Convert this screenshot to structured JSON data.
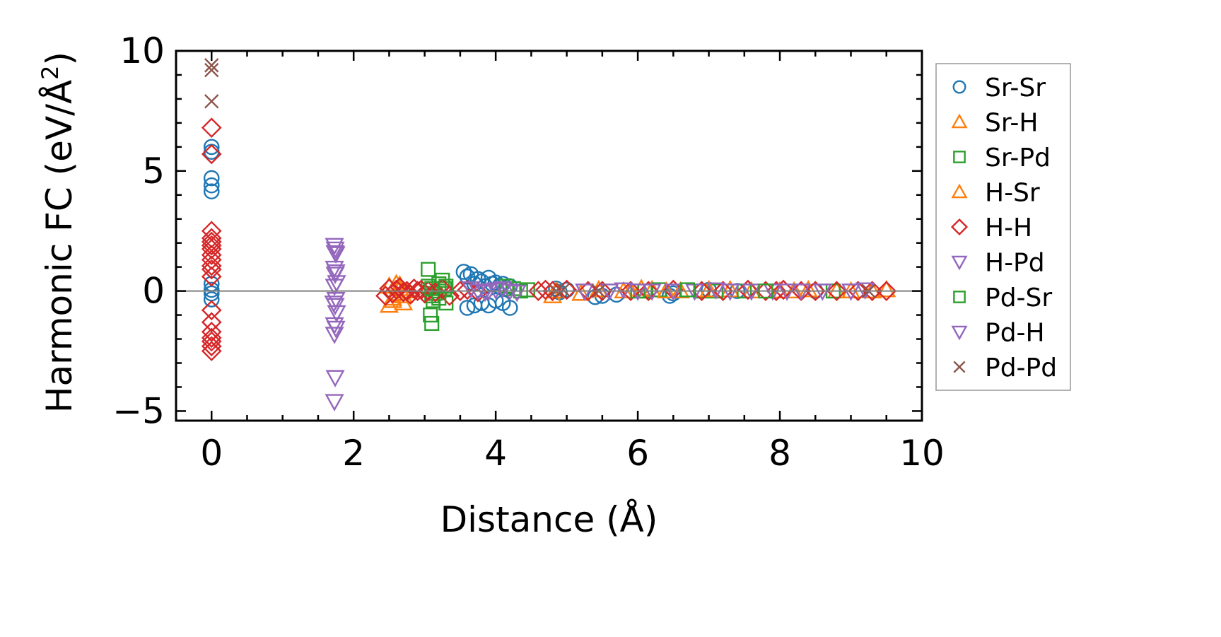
{
  "chart_data": {
    "type": "scatter",
    "xlabel": "Distance (Å)",
    "ylabel_main": "Harmonic FC (eV/Å",
    "ylabel_sup": "2",
    "ylabel_close": ")",
    "xlim": [
      -0.5,
      10
    ],
    "ylim": [
      -5.4,
      10
    ],
    "xticks": [
      {
        "value": 0,
        "label": "0"
      },
      {
        "value": 2,
        "label": "2"
      },
      {
        "value": 4,
        "label": "4"
      },
      {
        "value": 6,
        "label": "6"
      },
      {
        "value": 8,
        "label": "8"
      },
      {
        "value": 10,
        "label": "10"
      }
    ],
    "yticks": [
      {
        "value": -5,
        "label": "−5"
      },
      {
        "value": 0,
        "label": "0"
      },
      {
        "value": 5,
        "label": "5"
      },
      {
        "value": 10,
        "label": "10"
      }
    ],
    "zero_line": true,
    "legend_position": "outside-right",
    "series": [
      {
        "name": "Sr-Sr",
        "marker": "circle",
        "color": "#1f77b4",
        "x": [
          0,
          0,
          0,
          0,
          0,
          0,
          0,
          0,
          0,
          3.55,
          3.6,
          3.65,
          3.7,
          3.75,
          3.8,
          3.85,
          3.9,
          3.95,
          4.0,
          4.05,
          4.1,
          4.15,
          4.2,
          3.6,
          3.7,
          3.8,
          3.9,
          4.0,
          4.1,
          4.2,
          4.85,
          4.9,
          5.0,
          5.4,
          5.5,
          5.7,
          6.45,
          6.5,
          7.0,
          7.4,
          8.5
        ],
        "y": [
          6.0,
          5.8,
          4.7,
          4.4,
          4.15,
          0.3,
          0.05,
          -0.1,
          -0.35,
          0.8,
          0.6,
          0.7,
          0.3,
          0.5,
          0.4,
          0.2,
          0.55,
          0.3,
          0.35,
          0.2,
          0.3,
          0.1,
          0.2,
          -0.7,
          -0.6,
          -0.5,
          -0.6,
          -0.4,
          -0.5,
          -0.7,
          0.1,
          -0.05,
          0.05,
          -0.25,
          -0.2,
          -0.15,
          -0.2,
          -0.1,
          0.05,
          0.0,
          0.0
        ]
      },
      {
        "name": "Sr-H",
        "marker": "triangle-up",
        "color": "#ff7f0e",
        "x": [
          2.5,
          2.55,
          2.6,
          2.65,
          2.7,
          2.75,
          2.5,
          2.6,
          4.8,
          4.85,
          5.2,
          5.45,
          5.9,
          6.05,
          6.2,
          6.6,
          7.3,
          7.6,
          8.0,
          8.4,
          8.8,
          9.3,
          9.5
        ],
        "y": [
          -0.6,
          -0.3,
          -0.1,
          0.1,
          -0.5,
          0.0,
          0.2,
          0.3,
          -0.2,
          0.0,
          -0.1,
          0.05,
          0.0,
          0.1,
          0.05,
          0.0,
          0.05,
          0.0,
          0.0,
          0.05,
          0.0,
          0.0,
          0.05
        ]
      },
      {
        "name": "Sr-Pd",
        "marker": "square",
        "color": "#2ca02c",
        "x": [
          3.05,
          3.08,
          3.1,
          3.12,
          3.15,
          3.2,
          3.25,
          3.3,
          3.05,
          3.1,
          3.2,
          3.28,
          4.15,
          4.25,
          4.35,
          4.45,
          6.1,
          6.3,
          6.9,
          7.1,
          7.5,
          8.75
        ],
        "y": [
          0.9,
          -1.0,
          -1.35,
          -0.4,
          -0.1,
          0.3,
          0.45,
          -0.5,
          0.2,
          -0.2,
          0.0,
          0.1,
          0.2,
          0.1,
          0.0,
          0.05,
          0.0,
          0.05,
          0.0,
          0.0,
          0.0,
          0.0
        ]
      },
      {
        "name": "H-Sr",
        "marker": "triangle-up",
        "color": "#ff7f0e",
        "x": [
          2.55,
          2.65,
          2.7,
          5.8,
          6.4,
          7.0,
          8.2,
          9.0
        ],
        "y": [
          -0.4,
          0.25,
          -0.2,
          0.0,
          0.0,
          0.05,
          0.0,
          0.0
        ]
      },
      {
        "name": "H-H",
        "marker": "diamond",
        "color": "#d62728",
        "x": [
          0,
          0,
          0,
          0,
          0,
          0,
          0,
          0,
          0,
          0,
          0,
          0,
          0,
          0,
          0,
          0,
          0,
          0,
          0,
          2.45,
          2.5,
          2.55,
          2.6,
          2.65,
          2.7,
          2.75,
          2.8,
          2.85,
          2.9,
          2.95,
          3.0,
          3.05,
          3.15,
          3.25,
          3.35,
          3.5,
          3.6,
          3.75,
          4.6,
          4.7,
          4.8,
          5.0,
          5.3,
          5.5,
          5.9,
          6.15,
          6.5,
          6.9,
          7.2,
          7.55,
          7.8,
          7.95,
          8.05,
          8.3,
          8.5,
          8.8,
          9.1,
          9.3,
          9.5
        ],
        "y": [
          6.8,
          5.7,
          2.5,
          2.2,
          2.05,
          1.9,
          1.75,
          1.5,
          1.3,
          1.05,
          0.9,
          0.6,
          -0.8,
          -1.3,
          -1.7,
          -1.95,
          -2.1,
          -2.3,
          -2.5,
          -0.2,
          0.1,
          -0.1,
          0.05,
          0.15,
          -0.05,
          0.0,
          -0.15,
          0.1,
          0.0,
          0.05,
          -0.1,
          0.0,
          -0.05,
          0.1,
          -0.2,
          0.0,
          0.05,
          -0.05,
          0.0,
          0.05,
          0.0,
          0.05,
          0.0,
          0.0,
          0.0,
          0.0,
          0.05,
          0.0,
          0.0,
          0.05,
          0.0,
          0.0,
          0.05,
          0.0,
          0.0,
          0.0,
          0.0,
          0.0,
          0.0
        ]
      },
      {
        "name": "H-Pd",
        "marker": "triangle-down",
        "color": "#9467bd",
        "x": [
          1.73,
          1.74,
          1.75,
          1.73,
          1.74,
          1.76,
          1.73,
          1.75,
          1.72,
          1.74,
          1.76,
          1.73,
          1.75,
          1.74,
          1.73,
          3.65,
          3.75,
          3.85,
          4.0,
          4.2,
          4.3,
          5.25,
          5.6,
          5.8,
          6.2,
          6.5,
          6.8,
          7.1,
          7.6,
          7.9,
          8.3,
          8.6,
          9.2
        ],
        "y": [
          1.9,
          1.75,
          1.55,
          0.95,
          0.7,
          0.35,
          0.2,
          -0.35,
          -0.5,
          -0.6,
          -0.9,
          -1.4,
          -1.55,
          -3.6,
          -4.6,
          0.1,
          0.0,
          -0.05,
          0.05,
          0.0,
          -0.05,
          0.0,
          0.0,
          0.05,
          0.0,
          0.0,
          0.0,
          0.05,
          0.0,
          0.0,
          0.0,
          0.0,
          0.05
        ]
      },
      {
        "name": "Pd-Sr",
        "marker": "square",
        "color": "#2ca02c",
        "x": [
          3.1,
          3.2,
          3.3,
          6.0,
          6.7,
          7.8
        ],
        "y": [
          0.1,
          -0.3,
          0.2,
          0.0,
          0.05,
          0.0
        ]
      },
      {
        "name": "Pd-H",
        "marker": "triangle-down",
        "color": "#9467bd",
        "x": [
          1.74,
          1.75,
          1.73,
          3.9,
          4.1,
          6.0,
          7.3,
          8.1,
          9.0
        ],
        "y": [
          1.6,
          0.8,
          -1.8,
          0.0,
          0.1,
          0.0,
          0.0,
          0.0,
          0.0
        ]
      },
      {
        "name": "Pd-Pd",
        "marker": "x",
        "color": "#8c564b",
        "x": [
          0,
          0,
          0,
          4.85,
          4.95,
          5.45,
          9.25
        ],
        "y": [
          9.4,
          9.2,
          7.9,
          0.0,
          0.05,
          0.0,
          0.0
        ]
      }
    ]
  }
}
